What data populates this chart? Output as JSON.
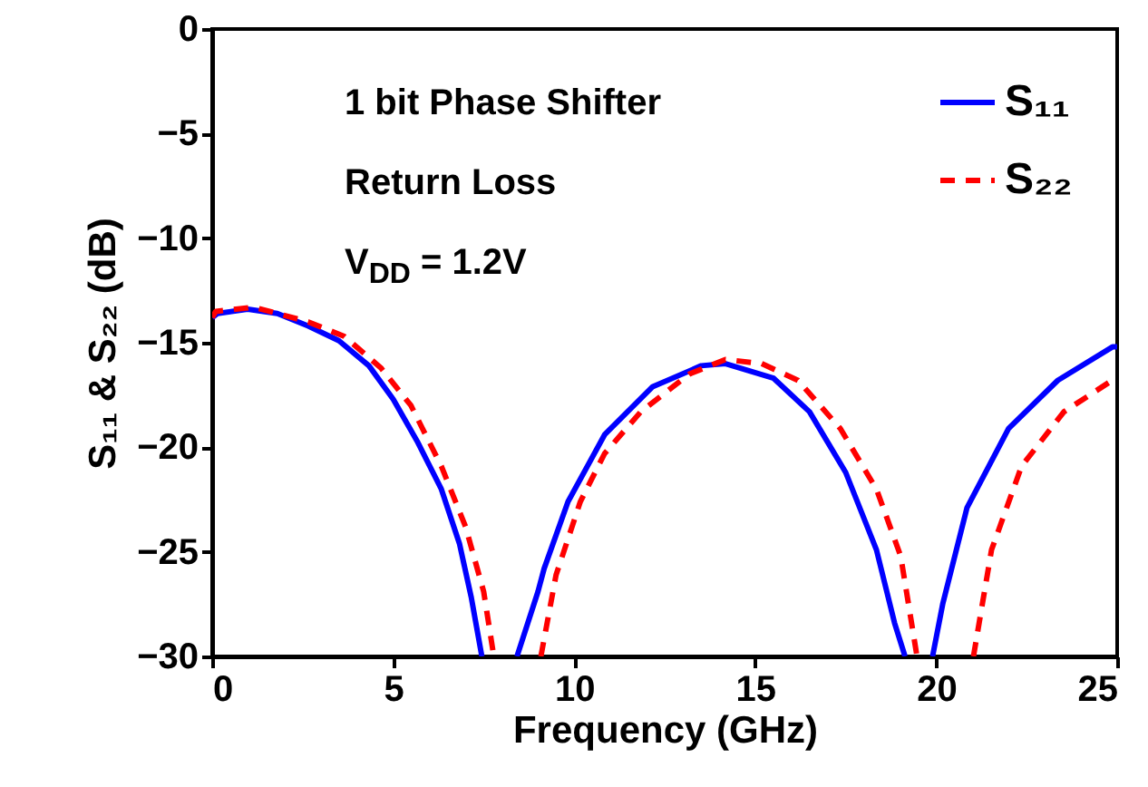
{
  "chart_data": {
    "type": "line",
    "xlabel": "Frequency  (GHz)",
    "ylabel": "S₁₁ & S₂₂ (dB)",
    "annotations": [
      "1 bit Phase Shifter",
      "Return Loss",
      "V$_{DD}$ = 1.2V"
    ],
    "xlim": [
      0,
      25
    ],
    "xticks": [
      0,
      5,
      10,
      15,
      20,
      25
    ],
    "ylim": [
      -30,
      0
    ],
    "yticks": [
      -30,
      -25,
      -20,
      -15,
      -10,
      -5,
      0
    ],
    "grid": false,
    "legend": "top right",
    "marker": "none",
    "series": [
      {
        "name": "S₁₁",
        "color": "#0000ff",
        "line_style": "solid",
        "x": [
          0,
          0.15,
          0.98,
          1.8,
          2.65,
          3.5,
          4.33,
          5.0,
          5.66,
          6.33,
          6.83,
          7.16,
          7.45,
          7.9,
          8.42,
          9.0,
          9.17,
          9.83,
          10.84,
          12.17,
          13.51,
          14.18,
          15.51,
          16.5,
          17.5,
          18.35,
          18.85,
          19.14,
          19.5,
          19.9,
          20.18,
          20.85,
          22.0,
          23.36,
          24.87,
          25
        ],
        "values": [
          -13.8,
          -13.6,
          -13.4,
          -13.6,
          -14.2,
          -14.9,
          -16.1,
          -17.7,
          -19.7,
          -22.0,
          -24.6,
          -27.2,
          -30,
          null,
          -30,
          -26.9,
          -25.8,
          -22.6,
          -19.4,
          -17.1,
          -16.1,
          -16.0,
          -16.7,
          -18.3,
          -21.2,
          -24.9,
          -28.4,
          -30,
          null,
          -30,
          -27.5,
          -22.9,
          -19.1,
          -16.8,
          -15.2,
          -15.2
        ]
      },
      {
        "name": "S₂₂",
        "color": "#ff0000",
        "line_style": "dashed",
        "x": [
          0,
          0.1,
          1.15,
          2.65,
          3.65,
          4.66,
          5.49,
          6.33,
          7.0,
          7.5,
          7.78,
          8.4,
          9.08,
          9.5,
          10.17,
          10.84,
          11.84,
          13.18,
          14.18,
          15.18,
          16.18,
          17.35,
          18.35,
          19.02,
          19.47,
          20.2,
          21.03,
          21.53,
          22.36,
          23.53,
          24.95,
          25
        ],
        "values": [
          -13.8,
          -13.5,
          -13.3,
          -14.0,
          -14.7,
          -16.2,
          -18.0,
          -20.9,
          -23.8,
          -26.9,
          -30,
          null,
          -30,
          -26.1,
          -22.6,
          -20.3,
          -18.3,
          -16.5,
          -15.8,
          -16.0,
          -16.8,
          -19.1,
          -22.0,
          -25.2,
          -30,
          null,
          -30,
          -24.9,
          -20.9,
          -18.3,
          -16.7,
          -16.6
        ]
      }
    ]
  }
}
